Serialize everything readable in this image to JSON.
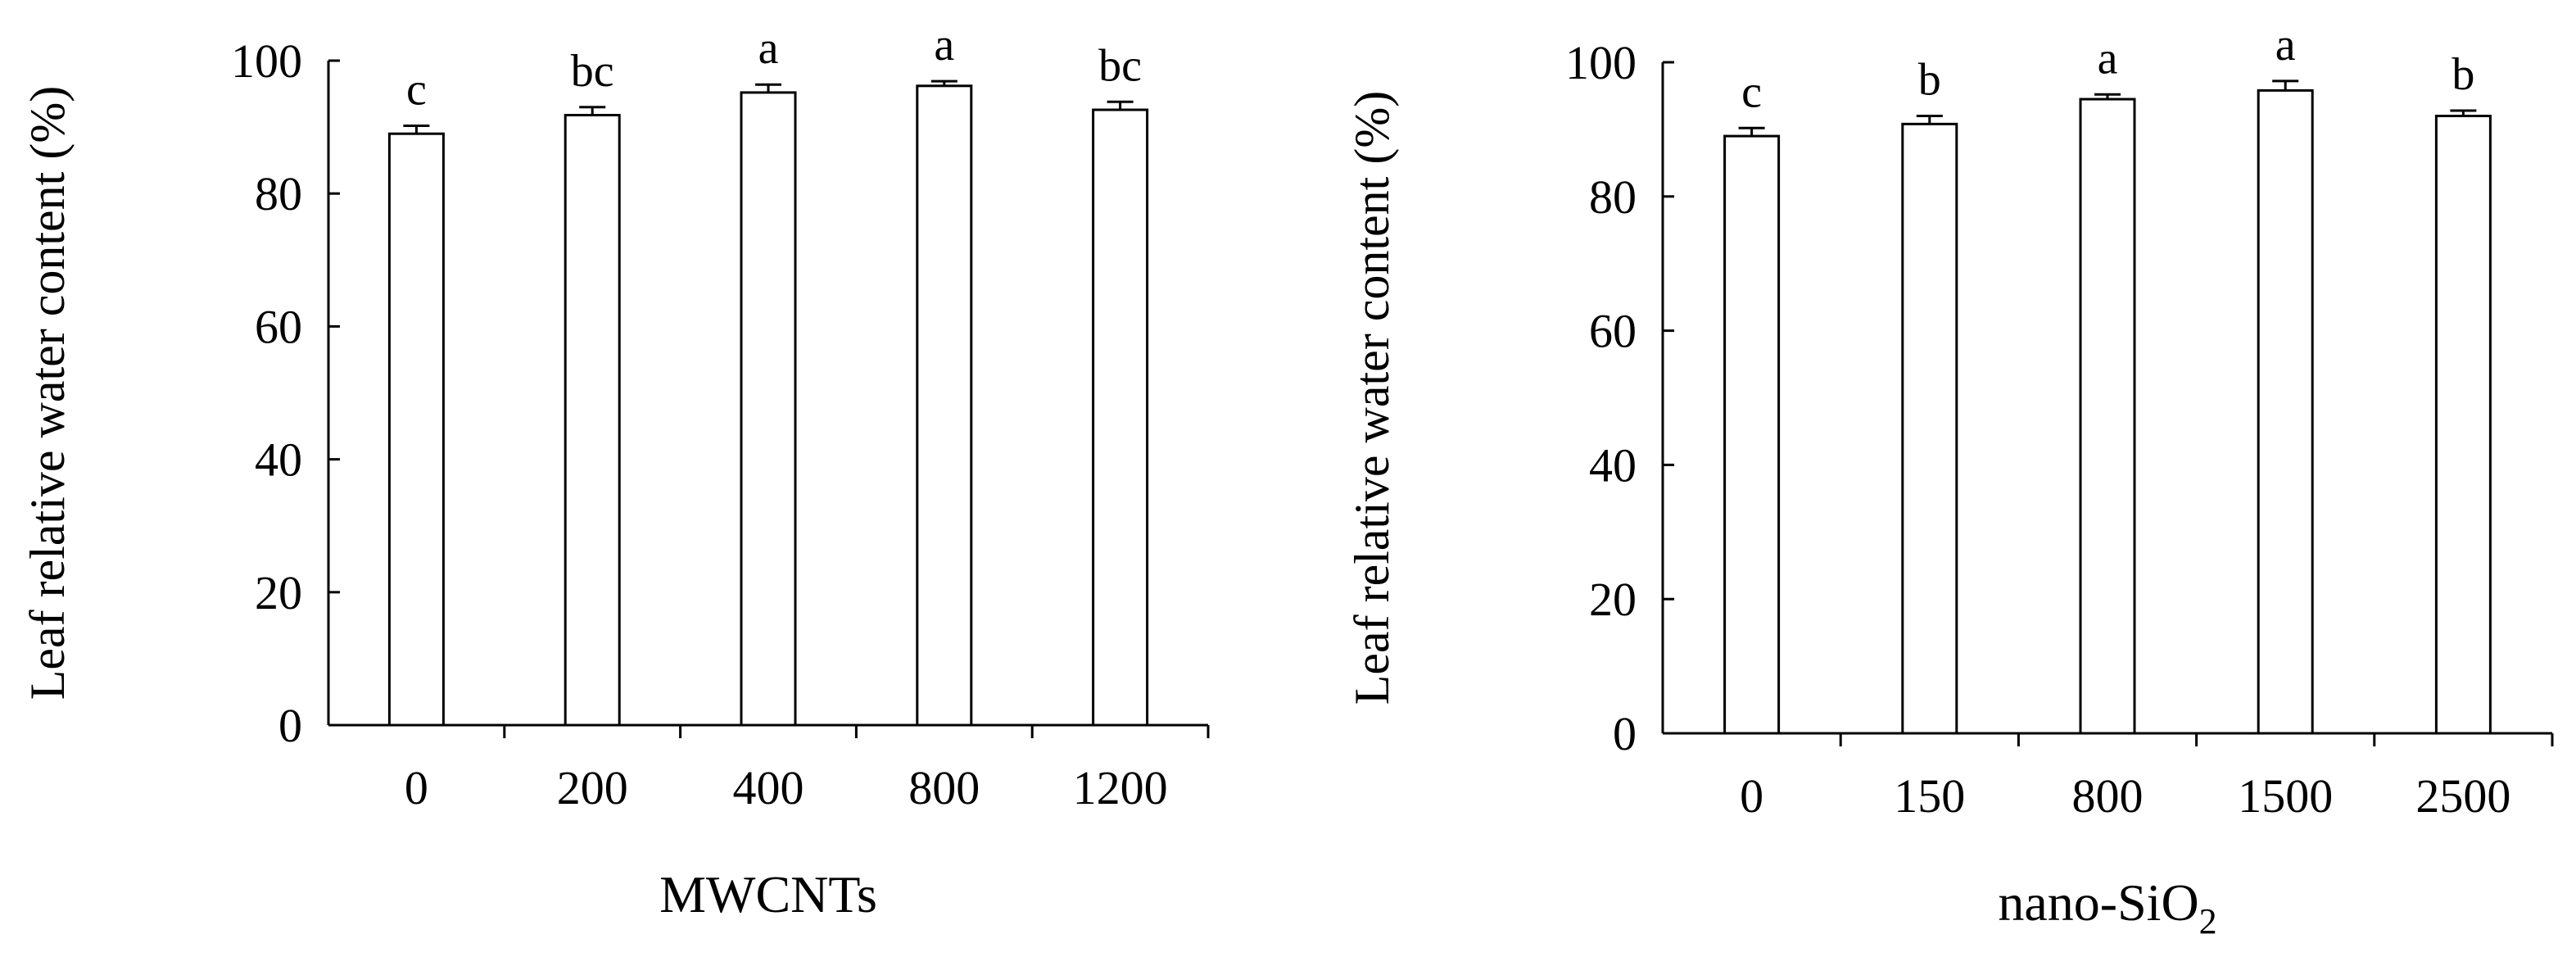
{
  "chart_data": [
    {
      "type": "bar",
      "title": "",
      "xlabel": "MWCNTs",
      "xlabel_subscript": "",
      "ylabel": "Leaf relative water content (%)",
      "categories": [
        "0",
        "200",
        "400",
        "800",
        "1200"
      ],
      "values": [
        89.0,
        91.8,
        95.2,
        96.2,
        92.6
      ],
      "errors": [
        1.2,
        1.2,
        1.2,
        0.7,
        1.2
      ],
      "letters": [
        "c",
        "bc",
        "a",
        "a",
        "bc"
      ],
      "ylim": [
        0,
        100
      ],
      "yticks": [
        "0",
        "20",
        "40",
        "60",
        "80",
        "100"
      ],
      "bar_fill": "#ffffff",
      "bar_stroke": "#000000",
      "grid": false,
      "legend": "none"
    },
    {
      "type": "bar",
      "title": "",
      "xlabel": "nano-SiO",
      "xlabel_subscript": "2",
      "ylabel": "Leaf relative water content (%)",
      "categories": [
        "0",
        "150",
        "800",
        "1500",
        "2500"
      ],
      "values": [
        89.0,
        90.8,
        94.5,
        95.8,
        92.0
      ],
      "errors": [
        1.2,
        1.2,
        0.7,
        1.4,
        0.8
      ],
      "letters": [
        "c",
        "b",
        "a",
        "a",
        "b"
      ],
      "ylim": [
        0,
        100
      ],
      "yticks": [
        "0",
        "20",
        "40",
        "60",
        "80",
        "100"
      ],
      "bar_fill": "#ffffff",
      "bar_stroke": "#000000",
      "grid": false,
      "legend": "none"
    }
  ]
}
